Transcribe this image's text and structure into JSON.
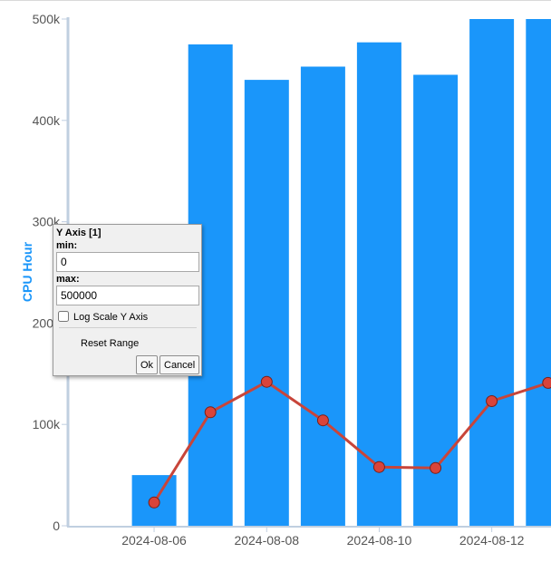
{
  "chart_data": {
    "type": "bar",
    "ylabel": "CPU Hour",
    "ylim": [
      0,
      500000
    ],
    "y_ticks": [
      "0",
      "100k",
      "200k",
      "300k",
      "400k",
      "500k"
    ],
    "y_tick_values": [
      0,
      100000,
      200000,
      300000,
      400000,
      500000
    ],
    "x_ticks": [
      "2024-08-06",
      "2024-08-08",
      "2024-08-10",
      "2024-08-12"
    ],
    "x": [
      "2024-08-06",
      "2024-08-07",
      "2024-08-08",
      "2024-08-09",
      "2024-08-10",
      "2024-08-11",
      "2024-08-12",
      "2024-08-13"
    ],
    "series": [
      {
        "type": "bar",
        "color": "#1a96fa",
        "values": [
          50000,
          475000,
          440000,
          453000,
          477000,
          445000,
          500000,
          500000
        ]
      },
      {
        "type": "line",
        "color": "#c8453a",
        "values": [
          23000,
          112000,
          142000,
          104000,
          58000,
          57000,
          123000,
          141000
        ]
      }
    ],
    "grid": false,
    "legend": "none",
    "axis_color": "#c0cfe0",
    "ylabel_color": "#1a96fa"
  },
  "dialog": {
    "title": "Y Axis [1]",
    "min_label": "min:",
    "min_value": "0",
    "max_label": "max:",
    "max_value": "500000",
    "log_label": "Log Scale Y Axis",
    "log_checked": false,
    "reset_label": "Reset Range",
    "ok_label": "Ok",
    "cancel_label": "Cancel"
  }
}
